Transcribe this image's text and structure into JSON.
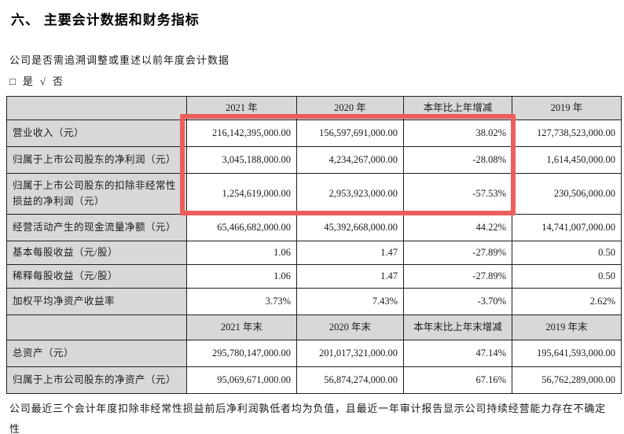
{
  "doc": {
    "title": "六、 主要会计数据和财务指标",
    "question": "公司是否需追溯调整或重述以前年度会计数据",
    "declaration": {
      "yes_box": "□",
      "yes_label": "是",
      "check_mark": "√",
      "no_label": "否"
    },
    "footnote": "公司最近三个会计年度扣除非经常性损益前后净利润孰低者均为负值，且最近一年审计报告显示公司持续经营能力存在不确定性"
  },
  "highlight": {
    "color": "#ee5d5d",
    "meaning": "red box over 2021/2020/change columns of first three rows"
  },
  "table": {
    "header1": {
      "c1": "",
      "c2": "2021 年",
      "c3": "2020 年",
      "c4": "本年比上年增减",
      "c5": "2019 年"
    },
    "rows1": [
      {
        "label": "营业收入（元）",
        "values": [
          "216,142,395,000.00",
          "156,597,691,000.00",
          "38.02%",
          "127,738,523,000.00"
        ]
      },
      {
        "label": "归属于上市公司股东的净利润（元）",
        "values": [
          "3,045,188,000.00",
          "4,234,267,000.00",
          "-28.08%",
          "1,614,450,000.00"
        ]
      },
      {
        "label": "归属于上市公司股东的扣除非经常性损益的净利润（元）",
        "values": [
          "1,254,619,000.00",
          "2,953,923,000.00",
          "-57.53%",
          "230,506,000.00"
        ]
      },
      {
        "label": "经营活动产生的现金流量净额（元）",
        "values": [
          "65,466,682,000.00",
          "45,392,668,000.00",
          "44.22%",
          "14,741,007,000.00"
        ]
      },
      {
        "label": "基本每股收益（元/股）",
        "values": [
          "1.06",
          "1.47",
          "-27.89%",
          "0.50"
        ]
      },
      {
        "label": "稀释每股收益（元/股）",
        "values": [
          "1.06",
          "1.47",
          "-27.89%",
          "0.50"
        ]
      },
      {
        "label": "加权平均净资产收益率",
        "values": [
          "3.73%",
          "7.43%",
          "-3.70%",
          "2.62%"
        ]
      }
    ],
    "header2": {
      "c1": "",
      "c2": "2021 年末",
      "c3": "2020 年末",
      "c4": "本年末比上年末增减",
      "c5": "2019 年末"
    },
    "rows2": [
      {
        "label": "总资产（元）",
        "values": [
          "295,780,147,000.00",
          "201,017,321,000.00",
          "47.14%",
          "195,641,593,000.00"
        ]
      },
      {
        "label": "归属于上市公司股东的净资产（元）",
        "values": [
          "95,069,671,000.00",
          "56,874,274,000.00",
          "67.16%",
          "56,762,289,000.00"
        ]
      }
    ]
  }
}
